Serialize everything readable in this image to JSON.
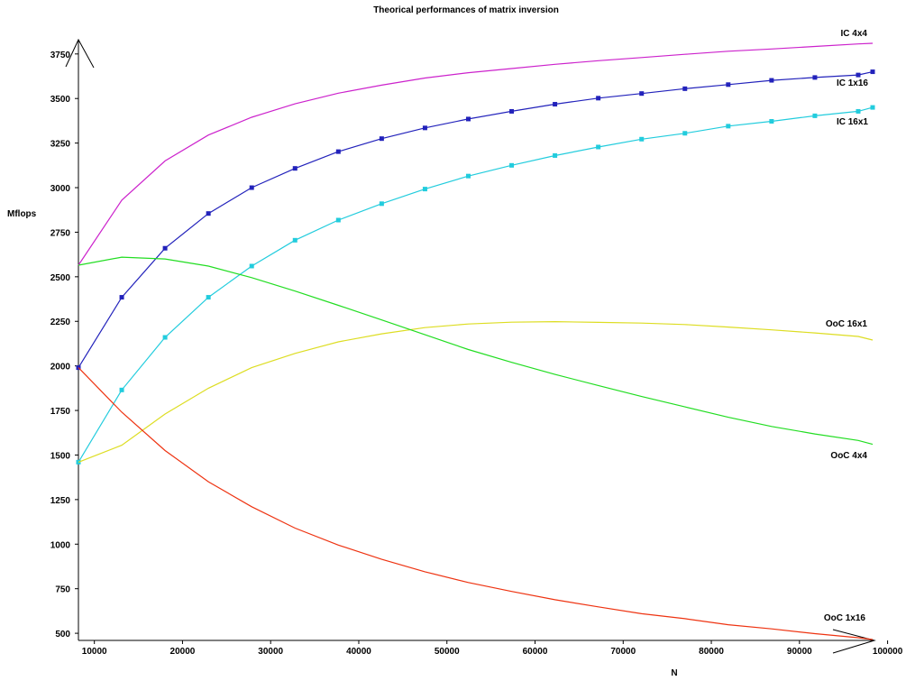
{
  "chart_data": {
    "type": "line",
    "title": "Theorical performances of matrix inversion",
    "xlabel": "N",
    "ylabel": "Mflops",
    "xlim": [
      8192,
      98304
    ],
    "ylim": [
      460,
      3830
    ],
    "grid": false,
    "xticks": [
      10000,
      20000,
      30000,
      40000,
      50000,
      60000,
      70000,
      80000,
      90000,
      100000
    ],
    "yticks": [
      500,
      750,
      1000,
      1250,
      1500,
      1750,
      2000,
      2250,
      2500,
      2750,
      3000,
      3250,
      3500,
      3750
    ],
    "x": [
      8192,
      13107,
      18022,
      22938,
      27853,
      32768,
      37683,
      42598,
      47514,
      52429,
      57344,
      62259,
      67174,
      72090,
      77005,
      81920,
      86835,
      91750,
      96666,
      98304
    ],
    "series": [
      {
        "name": "IC 4x4",
        "color": "#cc22cc",
        "markers": false,
        "values": [
          2565,
          2930,
          3150,
          3295,
          3395,
          3470,
          3530,
          3575,
          3615,
          3645,
          3668,
          3692,
          3712,
          3730,
          3748,
          3765,
          3778,
          3792,
          3806,
          3810
        ]
      },
      {
        "name": "IC 1x16",
        "color": "#2222bb",
        "markers": true,
        "values": [
          1990,
          2385,
          2660,
          2855,
          3000,
          3108,
          3202,
          3275,
          3335,
          3385,
          3428,
          3468,
          3502,
          3528,
          3555,
          3578,
          3602,
          3618,
          3632,
          3650
        ]
      },
      {
        "name": "IC 16x1",
        "color": "#22ccdd",
        "markers": true,
        "values": [
          1460,
          1865,
          2160,
          2385,
          2560,
          2705,
          2818,
          2910,
          2992,
          3065,
          3125,
          3180,
          3228,
          3272,
          3305,
          3345,
          3372,
          3403,
          3428,
          3450
        ]
      },
      {
        "name": "OoC 16x1",
        "color": "#dddd22",
        "markers": false,
        "values": [
          1460,
          1555,
          1730,
          1875,
          1990,
          2070,
          2135,
          2180,
          2215,
          2235,
          2245,
          2248,
          2244,
          2240,
          2232,
          2218,
          2202,
          2185,
          2165,
          2145
        ]
      },
      {
        "name": "OoC 4x4",
        "color": "#22dd22",
        "markers": false,
        "values": [
          2565,
          2610,
          2600,
          2560,
          2495,
          2420,
          2340,
          2258,
          2175,
          2092,
          2020,
          1952,
          1890,
          1828,
          1770,
          1712,
          1660,
          1618,
          1582,
          1560
        ]
      },
      {
        "name": "OoC 1x16",
        "color": "#ee3311",
        "markers": false,
        "values": [
          1990,
          1740,
          1525,
          1350,
          1210,
          1090,
          995,
          915,
          845,
          785,
          735,
          688,
          648,
          610,
          582,
          548,
          525,
          498,
          475,
          465
        ]
      }
    ]
  }
}
